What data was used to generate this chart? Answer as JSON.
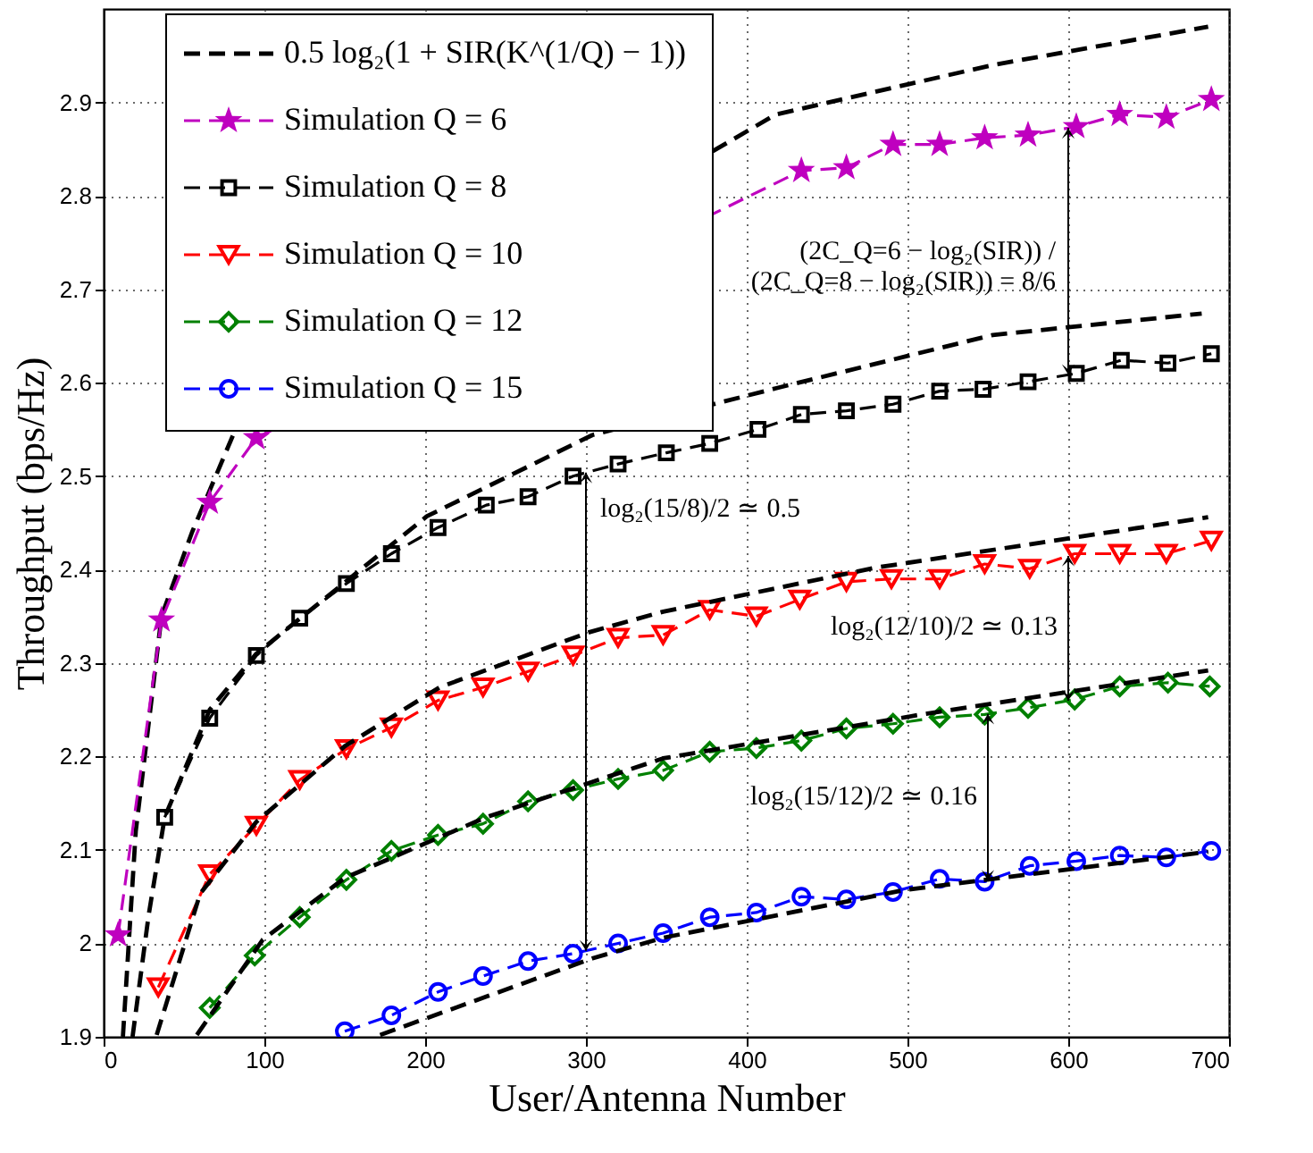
{
  "chart_data": {
    "type": "line",
    "xlabel": "User/Antenna Number",
    "ylabel": "Throughput (bps/Hz)",
    "xlim": [
      0,
      700
    ],
    "ylim": [
      1.9,
      3.0
    ],
    "xticks": [
      0,
      100,
      200,
      300,
      400,
      500,
      600,
      700
    ],
    "yticks": [
      1.9,
      2,
      2.1,
      2.2,
      2.3,
      2.4,
      2.5,
      2.6,
      2.7,
      2.8,
      2.9
    ],
    "grid": true,
    "legend": "top left",
    "series": [
      {
        "name": "0.5 log₂(1 + SIR(K^(1/Q) − 1))",
        "color": "#000000",
        "line_style": "dashed",
        "marker": "none",
        "x": [
          12,
          20,
          36,
          55,
          82,
          418,
          553,
          687
        ],
        "values": [
          1.9,
          2.12,
          2.35,
          2.44,
          2.55,
          2.887,
          2.94,
          2.981
        ]
      },
      {
        "name": "Simulation Q = 6",
        "color": "#bf00bf",
        "line_style": "dashed",
        "marker": "star",
        "x": [
          9,
          36,
          66,
          95,
          434,
          462,
          491,
          520,
          548,
          575,
          605,
          632,
          661,
          689
        ],
        "values": [
          2.009,
          2.346,
          2.472,
          2.541,
          2.827,
          2.83,
          2.855,
          2.855,
          2.862,
          2.865,
          2.874,
          2.887,
          2.884,
          2.903
        ]
      },
      {
        "name": "Simulation Q = 8",
        "color": "#000000",
        "line_style": "dashed",
        "marker": "square",
        "x": [
          38,
          66,
          95,
          122,
          151,
          179,
          208,
          238,
          264,
          292,
          320,
          350,
          377,
          407,
          434,
          462,
          491,
          520,
          547,
          575,
          605,
          633,
          662,
          689
        ],
        "values": [
          2.135,
          2.241,
          2.308,
          2.348,
          2.385,
          2.417,
          2.445,
          2.469,
          2.478,
          2.5,
          2.513,
          2.525,
          2.535,
          2.55,
          2.566,
          2.57,
          2.577,
          2.591,
          2.593,
          2.601,
          2.61,
          2.624,
          2.621,
          2.631
        ]
      },
      {
        "name": "Simulation Q = 10",
        "color": "#ff0000",
        "line_style": "dashed",
        "marker": "triangle",
        "x": [
          34,
          66,
          95,
          122,
          151,
          179,
          208,
          236,
          264,
          292,
          320,
          348,
          377,
          406,
          433,
          462,
          490,
          520,
          548,
          576,
          604,
          632,
          661,
          689
        ],
        "values": [
          1.953,
          2.074,
          2.126,
          2.175,
          2.208,
          2.231,
          2.26,
          2.274,
          2.291,
          2.308,
          2.327,
          2.33,
          2.357,
          2.35,
          2.368,
          2.387,
          2.39,
          2.39,
          2.406,
          2.401,
          2.417,
          2.417,
          2.417,
          2.431
        ]
      },
      {
        "name": "Simulation Q = 12",
        "color": "#008000",
        "line_style": "dashed",
        "marker": "diamond",
        "x": [
          66,
          94,
          122,
          151,
          179,
          208,
          236,
          264,
          292,
          320,
          348,
          377,
          406,
          434,
          462,
          491,
          520,
          548,
          575,
          604,
          632,
          662,
          688
        ],
        "values": [
          1.931,
          1.987,
          2.028,
          2.068,
          2.099,
          2.116,
          2.128,
          2.152,
          2.164,
          2.176,
          2.185,
          2.205,
          2.209,
          2.217,
          2.23,
          2.235,
          2.242,
          2.245,
          2.252,
          2.261,
          2.275,
          2.279,
          2.275
        ]
      },
      {
        "name": "Simulation Q = 15",
        "color": "#0000ff",
        "line_style": "dashed",
        "marker": "circle",
        "x": [
          150,
          179,
          208,
          236,
          264,
          292,
          320,
          348,
          377,
          406,
          434,
          462,
          491,
          520,
          548,
          576,
          605,
          632,
          661,
          689
        ],
        "values": [
          1.906,
          1.923,
          1.948,
          1.965,
          1.981,
          1.989,
          2.0,
          2.011,
          2.028,
          2.033,
          2.05,
          2.047,
          2.055,
          2.069,
          2.066,
          2.083,
          2.088,
          2.094,
          2.092,
          2.099
        ]
      },
      {
        "color": "#000000",
        "line_style": "dashed",
        "marker": "none",
        "x": [
          18,
          28,
          38,
          66,
          95,
          201,
          304,
          418,
          553,
          683
        ],
        "values": [
          1.9,
          2.03,
          2.135,
          2.25,
          2.31,
          2.457,
          2.544,
          2.594,
          2.651,
          2.674
        ]
      },
      {
        "color": "#000000",
        "line_style": "dashed",
        "marker": "none",
        "x": [
          33,
          60,
          95,
          150,
          209,
          302,
          348,
          480,
          687
        ],
        "values": [
          1.902,
          2.053,
          2.13,
          2.211,
          2.274,
          2.333,
          2.355,
          2.402,
          2.456
        ]
      },
      {
        "color": "#000000",
        "line_style": "dashed",
        "marker": "none",
        "x": [
          58,
          99,
          150,
          238,
          348,
          509,
          687
        ],
        "values": [
          1.902,
          2.004,
          2.07,
          2.135,
          2.198,
          2.245,
          2.292
        ]
      },
      {
        "color": "#000000",
        "line_style": "dashed",
        "marker": "none",
        "x": [
          172,
          238,
          304,
          348,
          498,
          687
        ],
        "values": [
          1.902,
          1.943,
          1.984,
          2.006,
          2.057,
          2.098
        ]
      }
    ],
    "annotations": [
      "(2C_Q=6 − log₂(SIR)) / (2C_Q=8 − log₂(SIR)) = 8/6",
      "log₂(15/8)/2 ≃ 0.5",
      "log₂(12/10)/2 ≃ 0.13",
      "log₂(15/12)/2 ≃ 0.16"
    ]
  }
}
